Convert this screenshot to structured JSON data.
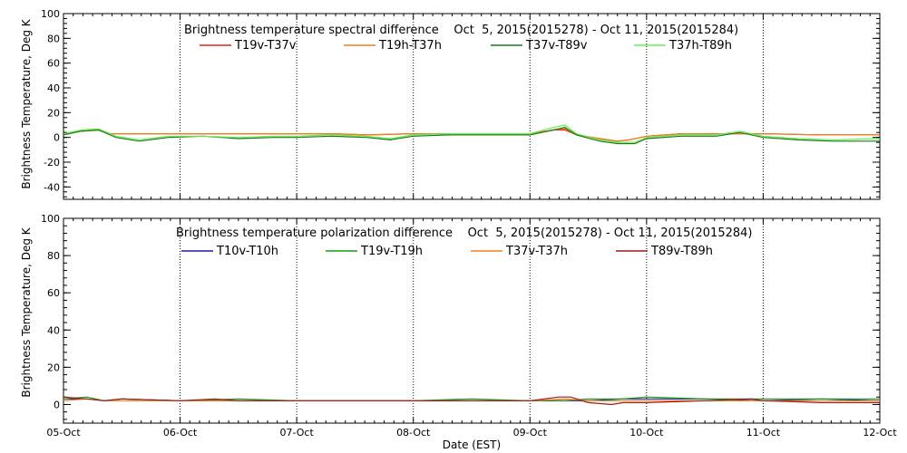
{
  "chart_data": [
    {
      "type": "line",
      "title": "Brightness temperature spectral difference    Oct  5, 2015(2015278) - Oct 11, 2015(2015284)",
      "ylabel": "Brightness Temperature, Deg K",
      "xlabel": "",
      "x_ticks": [
        "05-Oct",
        "06-Oct",
        "07-Oct",
        "08-Oct",
        "09-Oct",
        "10-Oct",
        "11-Oct",
        "12-Oct"
      ],
      "xlim": [
        0,
        7
      ],
      "x_units": "days since 05-Oct 2015 00:00 EST",
      "ylim": [
        -50,
        100
      ],
      "y_ticks": [
        -40,
        -20,
        0,
        20,
        40,
        60,
        80,
        100
      ],
      "grid": "vertical dotted at day boundaries",
      "legend_position": "top",
      "series": [
        {
          "name": "T19v-T37v",
          "color": "#e8201a",
          "x": [
            0,
            0.15,
            0.3,
            0.4,
            0.7,
            1.0,
            1.5,
            2.0,
            2.3,
            2.6,
            3.0,
            3.5,
            4.0,
            4.2,
            4.3,
            4.4,
            4.6,
            4.75,
            4.85,
            5.0,
            5.3,
            5.5,
            5.7,
            6.0,
            6.5,
            7.0
          ],
          "y": [
            3,
            5,
            6,
            3,
            3,
            3,
            3,
            3,
            3,
            2,
            3,
            3,
            3,
            6,
            6,
            2,
            -1,
            -3,
            -2,
            1,
            3,
            3,
            3,
            3,
            2,
            2
          ]
        },
        {
          "name": "T19h-T37h",
          "color": "#f07d1a",
          "x": [
            0,
            0.15,
            0.3,
            0.4,
            0.7,
            1.0,
            1.5,
            2.0,
            2.3,
            2.6,
            3.0,
            3.5,
            4.0,
            4.2,
            4.3,
            4.4,
            4.6,
            4.75,
            4.85,
            5.0,
            5.3,
            5.5,
            5.7,
            6.0,
            6.5,
            7.0
          ],
          "y": [
            3,
            5,
            6,
            3,
            3,
            3,
            3,
            3,
            3,
            2,
            3,
            3,
            3,
            6,
            7,
            2,
            -1,
            -3,
            -2,
            1,
            3,
            3,
            3,
            3,
            2,
            2
          ]
        },
        {
          "name": "T37v-T89v",
          "color": "#1a7a1a",
          "x": [
            0,
            0.15,
            0.3,
            0.45,
            0.65,
            0.9,
            1.2,
            1.5,
            1.8,
            2.0,
            2.3,
            2.6,
            2.8,
            3.0,
            3.3,
            3.6,
            4.0,
            4.2,
            4.3,
            4.4,
            4.6,
            4.75,
            4.9,
            5.0,
            5.3,
            5.6,
            5.8,
            6.0,
            6.3,
            6.6,
            7.0
          ],
          "y": [
            2,
            5,
            6,
            0,
            -3,
            0,
            1,
            -1,
            0,
            0,
            1,
            0,
            -2,
            1,
            2,
            2,
            2,
            6,
            8,
            2,
            -3,
            -5,
            -5,
            -1,
            1,
            1,
            4,
            0,
            -2,
            -3,
            -3
          ]
        },
        {
          "name": "T37h-T89h",
          "color": "#66ee55",
          "x": [
            0,
            0.15,
            0.3,
            0.45,
            0.65,
            0.9,
            1.2,
            1.5,
            1.8,
            2.0,
            2.3,
            2.6,
            2.8,
            3.0,
            3.3,
            3.6,
            4.0,
            4.2,
            4.3,
            4.4,
            4.6,
            4.75,
            4.9,
            5.0,
            5.3,
            5.6,
            5.8,
            6.0,
            6.3,
            6.6,
            7.0
          ],
          "y": [
            3,
            6,
            7,
            1,
            -2,
            1,
            1,
            0,
            1,
            1,
            2,
            1,
            -1,
            2,
            3,
            3,
            3,
            8,
            10,
            3,
            -2,
            -4,
            -4,
            0,
            2,
            2,
            5,
            1,
            -1,
            -2,
            -1
          ]
        }
      ]
    },
    {
      "type": "line",
      "title": "Brightness temperature polarization difference    Oct  5, 2015(2015278) - Oct 11, 2015(2015284)",
      "ylabel": "Brightness Temperature, Deg K",
      "xlabel": "Date (EST)",
      "x_ticks": [
        "05-Oct",
        "06-Oct",
        "07-Oct",
        "08-Oct",
        "09-Oct",
        "10-Oct",
        "11-Oct",
        "12-Oct"
      ],
      "xlim": [
        0,
        7
      ],
      "x_units": "days since 05-Oct 2015 00:00 EST",
      "ylim": [
        -10,
        100
      ],
      "y_ticks": [
        0,
        20,
        40,
        60,
        80,
        100
      ],
      "grid": "vertical dotted at day boundaries",
      "legend_position": "top",
      "series": [
        {
          "name": "T10v-T10h",
          "color": "#1a1aa0",
          "x": [
            0,
            0.2,
            0.35,
            0.5,
            1.0,
            1.5,
            2.0,
            2.5,
            3.0,
            3.5,
            4.0,
            4.3,
            4.5,
            4.8,
            5.0,
            5.5,
            6.0,
            6.5,
            7.0
          ],
          "y": [
            3,
            3,
            2,
            3,
            2,
            2,
            2,
            2,
            2,
            2,
            2,
            2,
            2,
            3,
            3,
            3,
            2,
            3,
            2
          ]
        },
        {
          "name": "T19v-T19h",
          "color": "#1a9a1a",
          "x": [
            0,
            0.2,
            0.35,
            0.5,
            1.0,
            1.5,
            2.0,
            2.5,
            3.0,
            3.5,
            4.0,
            4.3,
            4.5,
            4.8,
            5.0,
            5.5,
            6.0,
            6.5,
            7.0
          ],
          "y": [
            3,
            4,
            2,
            3,
            2,
            3,
            2,
            2,
            2,
            3,
            2,
            2,
            3,
            3,
            4,
            3,
            3,
            3,
            3
          ]
        },
        {
          "name": "T37v-T37h",
          "color": "#f07d1a",
          "x": [
            0,
            0.2,
            0.35,
            0.5,
            1.0,
            1.5,
            2.0,
            2.5,
            3.0,
            3.5,
            4.0,
            4.3,
            4.5,
            4.8,
            5.0,
            5.5,
            6.0,
            6.5,
            7.0
          ],
          "y": [
            2,
            3,
            2,
            2,
            2,
            2,
            2,
            2,
            2,
            2,
            2,
            3,
            2,
            2,
            2,
            2,
            2,
            2,
            2
          ]
        },
        {
          "name": "T89v-T89h",
          "color": "#a01a1a",
          "x": [
            0,
            0.2,
            0.35,
            0.5,
            1.0,
            1.3,
            1.5,
            2.0,
            2.5,
            3.0,
            3.5,
            4.0,
            4.25,
            4.35,
            4.5,
            4.7,
            4.8,
            5.0,
            5.5,
            5.9,
            6.0,
            6.5,
            7.0
          ],
          "y": [
            4,
            3,
            2,
            3,
            2,
            3,
            2,
            2,
            2,
            2,
            2,
            2,
            4,
            4,
            1,
            0,
            1,
            1,
            2,
            3,
            2,
            1,
            1
          ]
        }
      ]
    }
  ]
}
